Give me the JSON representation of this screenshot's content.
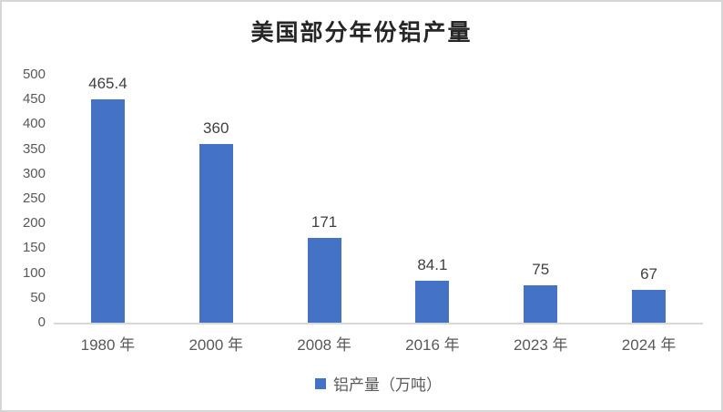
{
  "chart_data": {
    "type": "bar",
    "title": "美国部分年份铝产量",
    "categories": [
      "1980 年",
      "2000 年",
      "2008 年",
      "2016 年",
      "2023 年",
      "2024 年"
    ],
    "series": [
      {
        "name": "铝产量（万吨）",
        "values": [
          465.4,
          360,
          171,
          84.1,
          75,
          67
        ]
      }
    ],
    "value_labels": [
      "465.4",
      "360",
      "171",
      "84.1",
      "75",
      "67"
    ],
    "xlabel": "",
    "ylabel": "",
    "ylim": [
      0,
      500
    ],
    "ytick_step": 50,
    "ytick_labels": [
      "0",
      "50",
      "100",
      "150",
      "200",
      "250",
      "300",
      "350",
      "400",
      "450",
      "500"
    ],
    "grid": false,
    "legend": {
      "label": "铝产量（万吨）",
      "position": "bottom"
    },
    "colors": {
      "bar": "#4472C4",
      "axis_line": "#D9D9D9",
      "tick_label": "#595959",
      "data_label": "#404040",
      "title": "#262626",
      "frame_border": "#D6D6D6"
    }
  }
}
